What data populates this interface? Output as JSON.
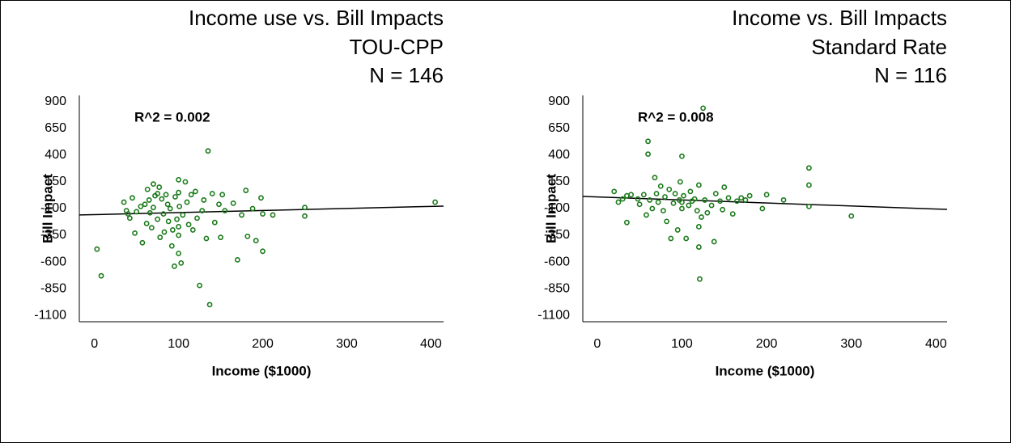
{
  "chart_data": [
    {
      "type": "scatter",
      "title": "Income use vs. Bill Impacts",
      "subtitle": "TOU-CPP",
      "sample_size": "N = 146",
      "annotation": "R^2 = 0.002",
      "x_label": "Income ($1000)",
      "y_label": "Bill Impact",
      "color": "#1a7a1a",
      "xlim": [
        -18,
        415
      ],
      "ylim": [
        -1160,
        960
      ],
      "xticks": [
        0,
        100,
        200,
        300,
        400
      ],
      "yticks": [
        900,
        650,
        400,
        150,
        -100,
        -350,
        -600,
        -850,
        -1100
      ],
      "x": [
        3,
        8,
        35,
        38,
        40,
        42,
        45,
        48,
        50,
        55,
        57,
        60,
        62,
        63,
        65,
        66,
        68,
        70,
        70,
        72,
        75,
        75,
        77,
        78,
        80,
        82,
        83,
        85,
        87,
        88,
        90,
        92,
        93,
        95,
        96,
        98,
        100,
        100,
        100,
        100,
        100,
        101,
        103,
        105,
        108,
        110,
        112,
        115,
        117,
        120,
        122,
        125,
        128,
        130,
        133,
        135,
        137,
        140,
        143,
        148,
        150,
        152,
        155,
        165,
        170,
        175,
        180,
        182,
        188,
        192,
        198,
        200,
        200,
        212,
        250,
        250,
        405
      ],
      "y": [
        -480,
        -730,
        -40,
        -120,
        -150,
        -190,
        0,
        -330,
        -130,
        -80,
        -420,
        -60,
        -240,
        80,
        -20,
        -140,
        -280,
        130,
        -90,
        20,
        -200,
        40,
        100,
        -370,
        -10,
        -150,
        -320,
        30,
        -60,
        -220,
        -100,
        -450,
        -300,
        -640,
        10,
        -200,
        -350,
        170,
        50,
        -520,
        -270,
        -80,
        -610,
        -160,
        150,
        -40,
        -250,
        30,
        -300,
        60,
        -190,
        -820,
        -120,
        -20,
        -380,
        440,
        -1000,
        40,
        -230,
        -60,
        -370,
        30,
        -120,
        -50,
        -580,
        -160,
        70,
        -360,
        -100,
        -400,
        0,
        -500,
        -150,
        -160,
        -90,
        -170,
        -40
      ],
      "trendline": {
        "x": [
          -18,
          415
        ],
        "y": [
          -160,
          -77
        ]
      }
    },
    {
      "type": "scatter",
      "title": "Income vs. Bill Impacts",
      "subtitle": "Standard Rate",
      "sample_size": "N = 116",
      "annotation": "R^2 = 0.008",
      "x_label": "Income ($1000)",
      "y_label": "Bill Impact",
      "color": "#1a7a1a",
      "xlim": [
        -17,
        413
      ],
      "ylim": [
        -1160,
        960
      ],
      "xticks": [
        0,
        100,
        200,
        300,
        400
      ],
      "yticks": [
        900,
        650,
        400,
        150,
        -100,
        -350,
        -600,
        -850,
        -1100
      ],
      "x": [
        20,
        25,
        30,
        35,
        35,
        40,
        48,
        50,
        55,
        58,
        60,
        60,
        62,
        65,
        68,
        70,
        72,
        75,
        78,
        80,
        82,
        85,
        87,
        90,
        92,
        95,
        97,
        98,
        100,
        100,
        100,
        102,
        105,
        108,
        110,
        112,
        115,
        118,
        120,
        120,
        120,
        121,
        123,
        125,
        127,
        130,
        135,
        138,
        140,
        145,
        148,
        150,
        155,
        160,
        165,
        170,
        175,
        180,
        195,
        200,
        220,
        250,
        250,
        250,
        300
      ],
      "y": [
        60,
        -40,
        -10,
        -230,
        20,
        30,
        -10,
        -60,
        30,
        -160,
        530,
        410,
        -20,
        -100,
        190,
        40,
        -40,
        110,
        -120,
        10,
        -220,
        80,
        -380,
        -50,
        40,
        -300,
        -20,
        150,
        390,
        -40,
        -100,
        20,
        -380,
        -70,
        60,
        -30,
        -10,
        -120,
        120,
        -270,
        -460,
        -760,
        -180,
        840,
        -20,
        -140,
        -70,
        -410,
        40,
        -30,
        -110,
        100,
        0,
        -150,
        -30,
        0,
        -20,
        20,
        -100,
        30,
        -20,
        280,
        120,
        -80,
        -170
      ],
      "trendline": {
        "x": [
          -17,
          413
        ],
        "y": [
          14,
          -108
        ]
      }
    }
  ]
}
